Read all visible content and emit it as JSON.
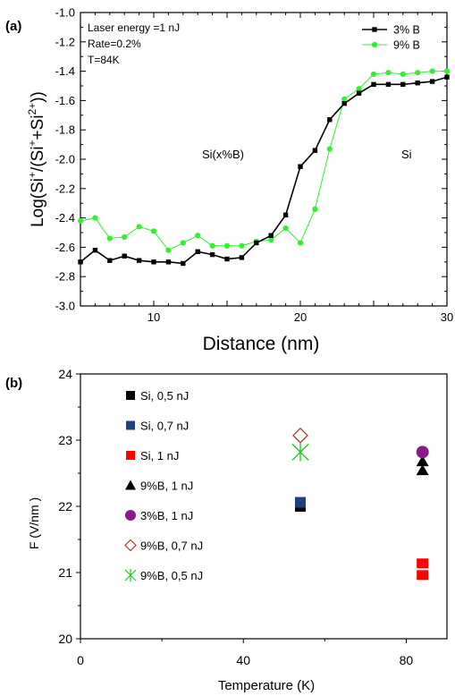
{
  "chart_data": [
    {
      "type": "line",
      "panel_label": "(a)",
      "xlabel": "Distance (nm)",
      "ylabel_parts": [
        "Log(Si",
        "+",
        "/(Si",
        "+",
        "+Si",
        "2+",
        "))"
      ],
      "xlim": [
        5,
        30
      ],
      "ylim": [
        -3.0,
        -1.0
      ],
      "x_ticks": [
        10,
        20,
        30
      ],
      "y_ticks": [
        "-1.0",
        "-1.2",
        "-1.4",
        "-1.6",
        "-1.8",
        "-2.0",
        "-2.2",
        "-2.4",
        "-2.6",
        "-2.8",
        "-3.0"
      ],
      "annotations": [
        "Laser energy =1 nJ",
        "Rate=0.2%",
        "T=84K"
      ],
      "region_labels": [
        "Si(x%B)",
        "Si"
      ],
      "legend_position": "top-right",
      "series": [
        {
          "name": "3% B",
          "color": "#000000",
          "marker": "square",
          "x": [
            5,
            6,
            7,
            8,
            9,
            10,
            11,
            12,
            13,
            14,
            15,
            16,
            17,
            18,
            19,
            20,
            21,
            22,
            23,
            24,
            25,
            26,
            27,
            28,
            29,
            30
          ],
          "y": [
            -2.7,
            -2.62,
            -2.69,
            -2.66,
            -2.69,
            -2.7,
            -2.7,
            -2.71,
            -2.63,
            -2.65,
            -2.68,
            -2.67,
            -2.57,
            -2.52,
            -2.38,
            -2.05,
            -1.94,
            -1.73,
            -1.62,
            -1.55,
            -1.49,
            -1.49,
            -1.49,
            -1.48,
            -1.47,
            -1.44
          ]
        },
        {
          "name": "9% B",
          "color": "#33ee33",
          "marker": "circle",
          "x": [
            5,
            6,
            7,
            8,
            9,
            10,
            11,
            12,
            13,
            14,
            15,
            16,
            17,
            18,
            19,
            20,
            21,
            22,
            23,
            24,
            25,
            26,
            27,
            28,
            29,
            30
          ],
          "y": [
            -2.42,
            -2.4,
            -2.54,
            -2.53,
            -2.46,
            -2.49,
            -2.62,
            -2.57,
            -2.52,
            -2.59,
            -2.59,
            -2.59,
            -2.56,
            -2.55,
            -2.47,
            -2.57,
            -2.34,
            -1.93,
            -1.59,
            -1.52,
            -1.42,
            -1.41,
            -1.42,
            -1.41,
            -1.4,
            -1.4
          ]
        }
      ]
    },
    {
      "type": "scatter",
      "panel_label": "(b)",
      "xlabel": "Temperature (K)",
      "ylabel": "F (V/nm )",
      "xlim": [
        0,
        90
      ],
      "ylim": [
        20,
        24
      ],
      "x_ticks": [
        0,
        40,
        80
      ],
      "y_ticks": [
        20,
        21,
        22,
        23,
        24
      ],
      "legend_position": "top-left",
      "series": [
        {
          "name": "Si, 0,5 nJ",
          "color": "#000000",
          "marker": "square",
          "x": [
            54
          ],
          "y": [
            22.0
          ]
        },
        {
          "name": "Si, 0,7 nJ",
          "color": "#1f3f7f",
          "marker": "square",
          "x": [
            54
          ],
          "y": [
            22.06
          ]
        },
        {
          "name": "Si, 1 nJ",
          "color": "#ff0000",
          "marker": "square-stack",
          "x": [
            84
          ],
          "y": [
            21.05
          ]
        },
        {
          "name": "9%B, 1 nJ",
          "color": "#000000",
          "marker": "triangle-pair",
          "x": [
            84
          ],
          "y": [
            22.58
          ]
        },
        {
          "name": "3%B, 1 nJ",
          "color": "#8a1a8a",
          "marker": "circle",
          "x": [
            84
          ],
          "y": [
            22.82
          ]
        },
        {
          "name": "9%B, 0,7 nJ",
          "color": "#b03a2e",
          "marker": "diamond-open",
          "x": [
            54
          ],
          "y": [
            23.07
          ]
        },
        {
          "name": "9%B, 0,5 nJ",
          "color": "#22cc22",
          "marker": "asterisk",
          "x": [
            54
          ],
          "y": [
            22.82
          ]
        }
      ]
    }
  ]
}
